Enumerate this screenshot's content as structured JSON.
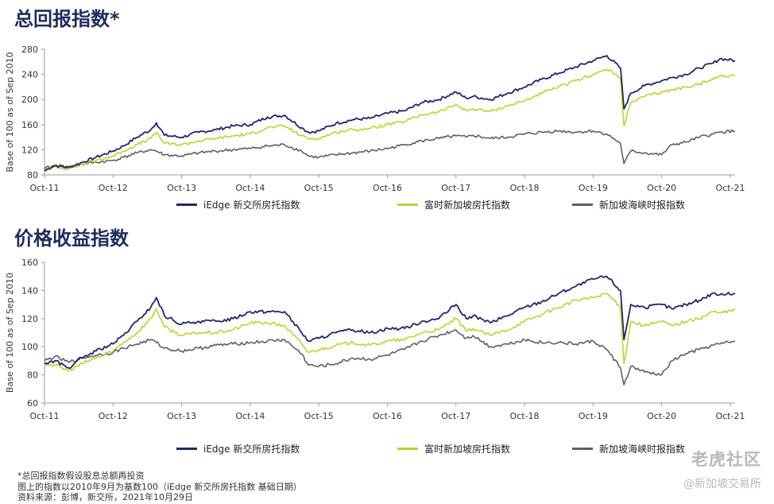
{
  "colors": {
    "iedge": "#1b2a66",
    "ft": "#b7d434",
    "sti": "#5f5f5f",
    "axis": "#999999"
  },
  "chart_data": [
    {
      "type": "line",
      "title": "总回报指数*",
      "ylabel": "Base of 100 as of Sep 2010",
      "xlabel": "",
      "ylim": [
        80,
        280
      ],
      "yticks": [
        80,
        120,
        160,
        200,
        240,
        280
      ],
      "xlim": [
        2011.75,
        2021.82
      ],
      "xticks": [
        {
          "label": "Oct-11",
          "x": 2011.75
        },
        {
          "label": "Oct-12",
          "x": 2012.75
        },
        {
          "label": "Oct-13",
          "x": 2013.75
        },
        {
          "label": "Oct-14",
          "x": 2014.75
        },
        {
          "label": "Oct-15",
          "x": 2015.75
        },
        {
          "label": "Oct-16",
          "x": 2016.75
        },
        {
          "label": "Oct-17",
          "x": 2017.75
        },
        {
          "label": "Oct-18",
          "x": 2018.75
        },
        {
          "label": "Oct-19",
          "x": 2019.75
        },
        {
          "label": "Oct-20",
          "x": 2020.75
        },
        {
          "label": "Oct-21",
          "x": 2021.75
        }
      ],
      "grid": false,
      "legend": "bottom",
      "series": [
        {
          "name": "iEdge 新交所房托指数",
          "color_key": "iedge",
          "x": [
            2011.75,
            2011.9,
            2012.1,
            2012.3,
            2012.5,
            2012.75,
            2012.9,
            2013.1,
            2013.3,
            2013.38,
            2013.5,
            2013.75,
            2014.0,
            2014.25,
            2014.5,
            2014.75,
            2015.0,
            2015.25,
            2015.5,
            2015.6,
            2015.75,
            2016.0,
            2016.25,
            2016.5,
            2016.75,
            2017.0,
            2017.25,
            2017.5,
            2017.75,
            2017.9,
            2018.0,
            2018.25,
            2018.5,
            2018.75,
            2019.0,
            2019.25,
            2019.5,
            2019.75,
            2019.95,
            2020.15,
            2020.2,
            2020.3,
            2020.5,
            2020.75,
            2020.9,
            2021.1,
            2021.3,
            2021.5,
            2021.6,
            2021.82
          ],
          "y": [
            87,
            95,
            92,
            100,
            108,
            118,
            126,
            140,
            152,
            163,
            143,
            140,
            148,
            152,
            158,
            160,
            172,
            175,
            155,
            148,
            150,
            162,
            168,
            170,
            178,
            182,
            195,
            200,
            212,
            202,
            205,
            200,
            210,
            220,
            232,
            242,
            252,
            262,
            270,
            250,
            185,
            210,
            222,
            230,
            235,
            240,
            250,
            258,
            265,
            262
          ]
        },
        {
          "name": "富时新加坡房托指数",
          "color_key": "ft",
          "x": [
            2011.75,
            2011.9,
            2012.1,
            2012.3,
            2012.5,
            2012.75,
            2012.9,
            2013.1,
            2013.3,
            2013.38,
            2013.5,
            2013.75,
            2014.0,
            2014.25,
            2014.5,
            2014.75,
            2015.0,
            2015.25,
            2015.5,
            2015.6,
            2015.75,
            2016.0,
            2016.25,
            2016.5,
            2016.75,
            2017.0,
            2017.25,
            2017.5,
            2017.75,
            2017.9,
            2018.0,
            2018.25,
            2018.5,
            2018.75,
            2019.0,
            2019.25,
            2019.5,
            2019.75,
            2019.95,
            2020.15,
            2020.2,
            2020.3,
            2020.5,
            2020.75,
            2020.9,
            2021.1,
            2021.3,
            2021.5,
            2021.6,
            2021.82
          ],
          "y": [
            86,
            93,
            90,
            97,
            103,
            110,
            118,
            128,
            138,
            148,
            130,
            128,
            134,
            138,
            142,
            145,
            155,
            158,
            142,
            138,
            138,
            148,
            152,
            154,
            160,
            165,
            176,
            180,
            192,
            182,
            185,
            181,
            190,
            198,
            210,
            220,
            230,
            240,
            248,
            235,
            158,
            195,
            205,
            212,
            215,
            220,
            225,
            232,
            238,
            238
          ]
        },
        {
          "name": "新加坡海峡时报指数",
          "color_key": "sti",
          "x": [
            2011.75,
            2011.9,
            2012.1,
            2012.3,
            2012.5,
            2012.75,
            2012.9,
            2013.1,
            2013.3,
            2013.38,
            2013.5,
            2013.75,
            2014.0,
            2014.25,
            2014.5,
            2014.75,
            2015.0,
            2015.25,
            2015.5,
            2015.6,
            2015.75,
            2016.0,
            2016.25,
            2016.5,
            2016.75,
            2017.0,
            2017.25,
            2017.5,
            2017.75,
            2017.9,
            2018.0,
            2018.25,
            2018.5,
            2018.75,
            2019.0,
            2019.25,
            2019.5,
            2019.75,
            2019.95,
            2020.15,
            2020.2,
            2020.3,
            2020.5,
            2020.75,
            2020.9,
            2021.1,
            2021.3,
            2021.5,
            2021.6,
            2021.82
          ],
          "y": [
            90,
            95,
            92,
            97,
            100,
            103,
            108,
            115,
            120,
            118,
            112,
            110,
            115,
            118,
            120,
            122,
            126,
            128,
            118,
            110,
            108,
            112,
            115,
            118,
            122,
            128,
            134,
            138,
            142,
            140,
            143,
            138,
            140,
            145,
            148,
            150,
            148,
            150,
            145,
            130,
            98,
            118,
            115,
            112,
            128,
            132,
            140,
            145,
            148,
            150
          ]
        }
      ]
    },
    {
      "type": "line",
      "title": "价格收益指数",
      "ylabel": "Base of 100 as of Sep 2010",
      "xlabel": "",
      "ylim": [
        60,
        160
      ],
      "yticks": [
        60,
        80,
        100,
        120,
        140,
        160
      ],
      "xlim": [
        2011.75,
        2021.82
      ],
      "xticks": [
        {
          "label": "Oct-11",
          "x": 2011.75
        },
        {
          "label": "Oct-12",
          "x": 2012.75
        },
        {
          "label": "Oct-13",
          "x": 2013.75
        },
        {
          "label": "Oct-14",
          "x": 2014.75
        },
        {
          "label": "Oct-15",
          "x": 2015.75
        },
        {
          "label": "Oct-16",
          "x": 2016.75
        },
        {
          "label": "Oct-17",
          "x": 2017.75
        },
        {
          "label": "Oct-18",
          "x": 2018.75
        },
        {
          "label": "Oct-19",
          "x": 2019.75
        },
        {
          "label": "Oct-20",
          "x": 2020.75
        },
        {
          "label": "Oct-21",
          "x": 2021.75
        }
      ],
      "grid": false,
      "legend": "bottom",
      "series": [
        {
          "name": "iEdge 新交所房托指数",
          "color_key": "iedge",
          "x": [
            2011.75,
            2011.9,
            2012.1,
            2012.3,
            2012.5,
            2012.75,
            2012.9,
            2013.1,
            2013.3,
            2013.38,
            2013.5,
            2013.75,
            2014.0,
            2014.25,
            2014.5,
            2014.75,
            2015.0,
            2015.25,
            2015.5,
            2015.6,
            2015.75,
            2016.0,
            2016.25,
            2016.5,
            2016.75,
            2017.0,
            2017.25,
            2017.5,
            2017.75,
            2017.9,
            2018.0,
            2018.25,
            2018.5,
            2018.75,
            2019.0,
            2019.25,
            2019.5,
            2019.75,
            2019.95,
            2020.15,
            2020.2,
            2020.3,
            2020.5,
            2020.75,
            2020.9,
            2021.1,
            2021.3,
            2021.5,
            2021.6,
            2021.82
          ],
          "y": [
            88,
            90,
            85,
            92,
            97,
            102,
            108,
            118,
            128,
            135,
            122,
            116,
            118,
            118,
            120,
            125,
            125,
            125,
            110,
            104,
            106,
            110,
            112,
            110,
            113,
            113,
            118,
            120,
            130,
            120,
            122,
            117,
            122,
            128,
            132,
            138,
            143,
            148,
            150,
            140,
            105,
            130,
            128,
            130,
            127,
            130,
            133,
            138,
            137,
            138
          ]
        },
        {
          "name": "富时新加坡房托指数",
          "color_key": "ft",
          "x": [
            2011.75,
            2011.9,
            2012.1,
            2012.3,
            2012.5,
            2012.75,
            2012.9,
            2013.1,
            2013.3,
            2013.38,
            2013.5,
            2013.75,
            2014.0,
            2014.25,
            2014.5,
            2014.75,
            2015.0,
            2015.25,
            2015.5,
            2015.6,
            2015.75,
            2016.0,
            2016.25,
            2016.5,
            2016.75,
            2017.0,
            2017.25,
            2017.5,
            2017.75,
            2017.9,
            2018.0,
            2018.25,
            2018.5,
            2018.75,
            2019.0,
            2019.25,
            2019.5,
            2019.75,
            2019.95,
            2020.15,
            2020.2,
            2020.3,
            2020.5,
            2020.75,
            2020.9,
            2021.1,
            2021.3,
            2021.5,
            2021.6,
            2021.82
          ],
          "y": [
            88,
            87,
            83,
            88,
            92,
            97,
            103,
            110,
            120,
            127,
            114,
            108,
            110,
            110,
            112,
            117,
            117,
            115,
            102,
            96,
            98,
            101,
            103,
            101,
            104,
            105,
            110,
            112,
            120,
            111,
            113,
            108,
            112,
            118,
            123,
            128,
            133,
            135,
            138,
            128,
            88,
            118,
            115,
            118,
            115,
            118,
            120,
            125,
            124,
            126
          ]
        },
        {
          "name": "新加坡海峡时报指数",
          "color_key": "sti",
          "x": [
            2011.75,
            2011.9,
            2012.1,
            2012.3,
            2012.5,
            2012.75,
            2012.9,
            2013.1,
            2013.3,
            2013.38,
            2013.5,
            2013.75,
            2014.0,
            2014.25,
            2014.5,
            2014.75,
            2015.0,
            2015.25,
            2015.5,
            2015.6,
            2015.75,
            2016.0,
            2016.25,
            2016.5,
            2016.75,
            2017.0,
            2017.25,
            2017.5,
            2017.75,
            2017.9,
            2018.0,
            2018.25,
            2018.5,
            2018.75,
            2019.0,
            2019.25,
            2019.5,
            2019.75,
            2019.95,
            2020.15,
            2020.2,
            2020.3,
            2020.5,
            2020.75,
            2020.9,
            2021.1,
            2021.3,
            2021.5,
            2021.6,
            2021.82
          ],
          "y": [
            90,
            93,
            89,
            92,
            94,
            96,
            99,
            102,
            105,
            103,
            99,
            97,
            99,
            101,
            102,
            103,
            104,
            105,
            95,
            87,
            86,
            88,
            92,
            91,
            94,
            98,
            104,
            108,
            112,
            106,
            108,
            100,
            102,
            105,
            103,
            103,
            102,
            104,
            98,
            85,
            73,
            86,
            82,
            80,
            90,
            95,
            98,
            101,
            102,
            104
          ]
        }
      ]
    }
  ],
  "footnotes": [
    "*总回报指数假设股息总额再投资",
    "图上的指数以2010年9月为基数100（iEdge 新交所房托指数 基础日期）",
    "资料来源：彭博，新交所，2021年10月29日"
  ],
  "watermark": {
    "logo_text": "老虎社区",
    "handle": "@新加坡交易所"
  }
}
